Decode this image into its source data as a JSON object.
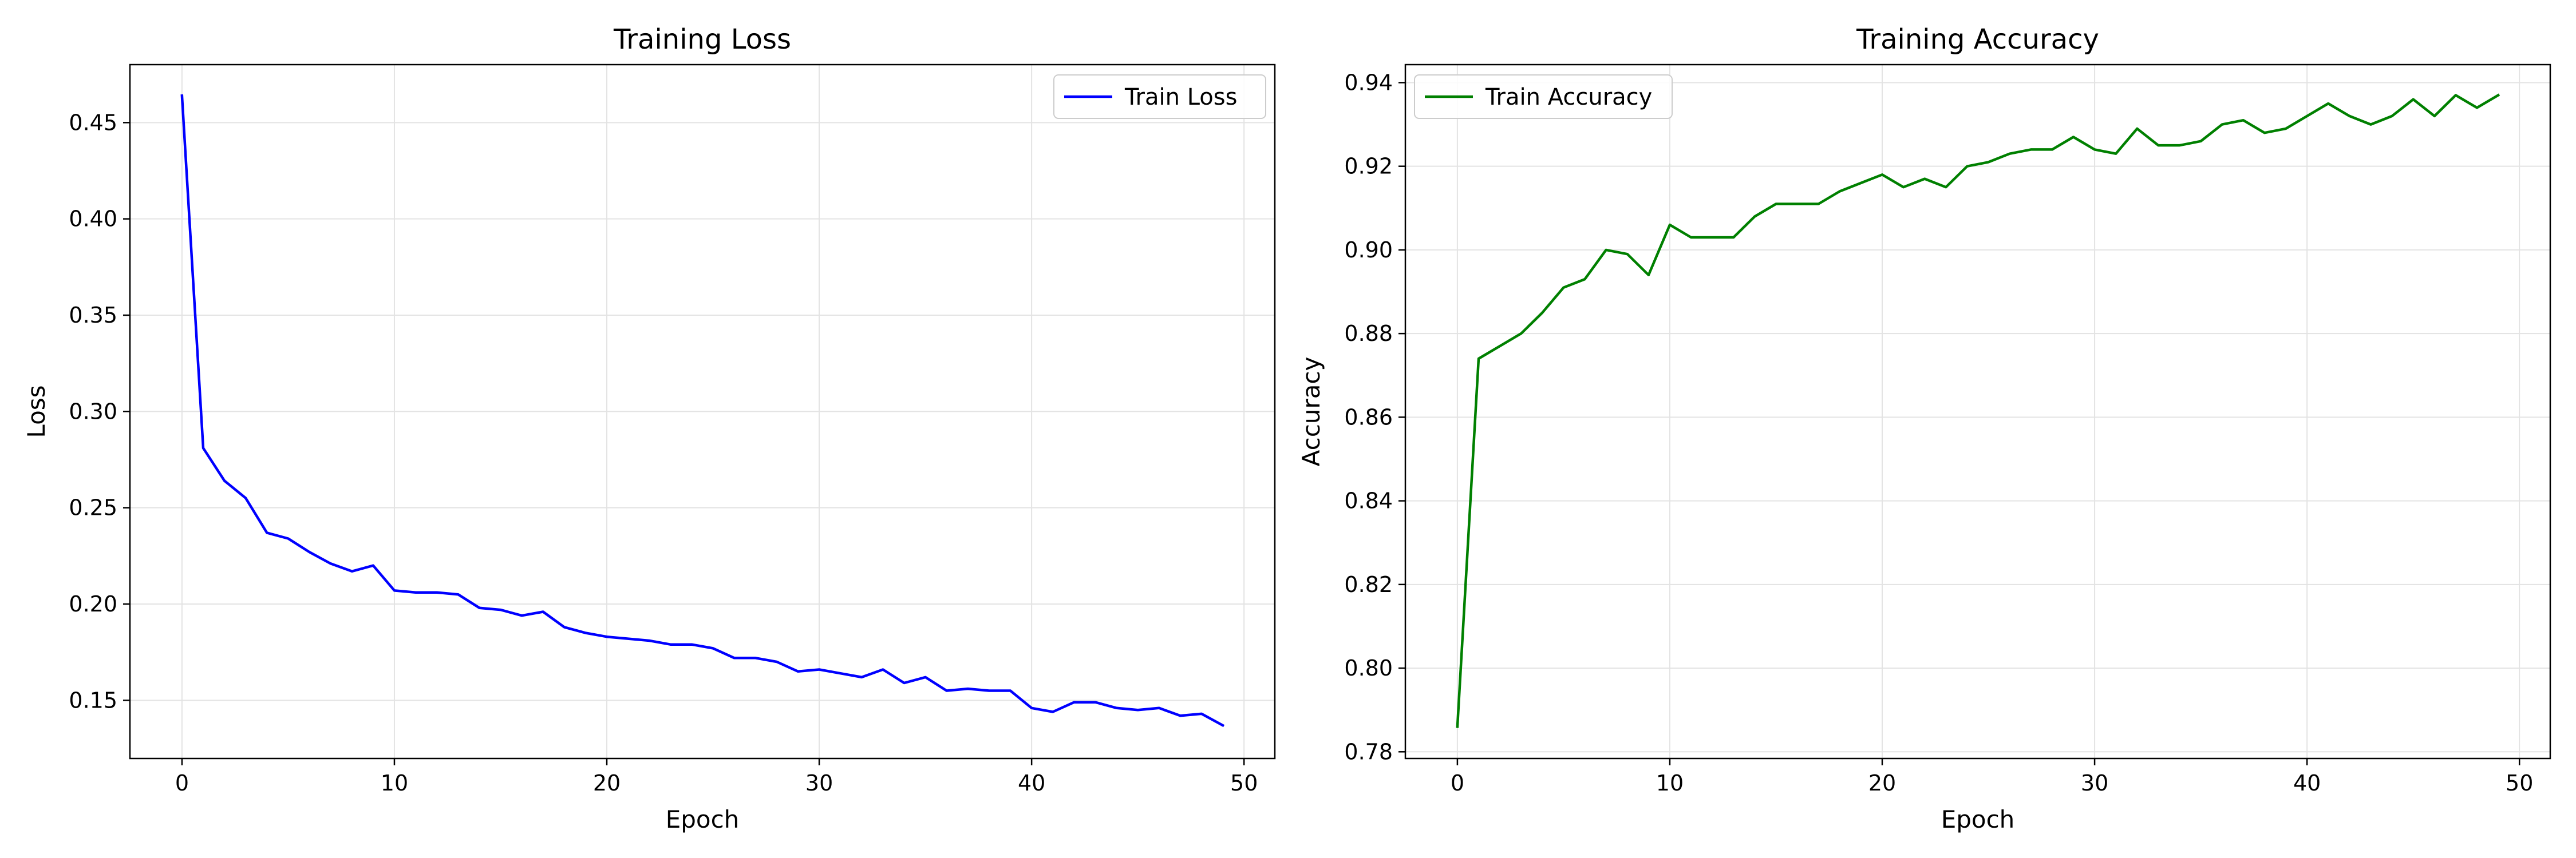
{
  "chart_data": [
    {
      "type": "line",
      "title": "Training Loss",
      "xlabel": "Epoch",
      "ylabel": "Loss",
      "xlim": [
        -2.45,
        51.45
      ],
      "ylim": [
        0.1198,
        0.4801
      ],
      "xticks": [
        0,
        10,
        20,
        30,
        40,
        50
      ],
      "yticks": [
        0.15,
        0.2,
        0.25,
        0.3,
        0.35,
        0.4,
        0.45
      ],
      "ytick_labels": [
        "0.15",
        "0.20",
        "0.25",
        "0.30",
        "0.35",
        "0.40",
        "0.45"
      ],
      "grid": true,
      "legend_position": "upper right",
      "x": [
        0,
        1,
        2,
        3,
        4,
        5,
        6,
        7,
        8,
        9,
        10,
        11,
        12,
        13,
        14,
        15,
        16,
        17,
        18,
        19,
        20,
        21,
        22,
        23,
        24,
        25,
        26,
        27,
        28,
        29,
        30,
        31,
        32,
        33,
        34,
        35,
        36,
        37,
        38,
        39,
        40,
        41,
        42,
        43,
        44,
        45,
        46,
        47,
        48,
        49
      ],
      "series": [
        {
          "name": "Train Loss",
          "color": "#0000ff",
          "values": [
            0.464,
            0.281,
            0.264,
            0.255,
            0.237,
            0.234,
            0.227,
            0.221,
            0.217,
            0.22,
            0.207,
            0.206,
            0.206,
            0.205,
            0.198,
            0.197,
            0.194,
            0.196,
            0.188,
            0.185,
            0.183,
            0.182,
            0.181,
            0.179,
            0.179,
            0.177,
            0.172,
            0.172,
            0.17,
            0.165,
            0.166,
            0.164,
            0.162,
            0.166,
            0.159,
            0.162,
            0.155,
            0.156,
            0.155,
            0.155,
            0.146,
            0.144,
            0.149,
            0.149,
            0.146,
            0.145,
            0.146,
            0.142,
            0.143,
            0.137
          ]
        }
      ]
    },
    {
      "type": "line",
      "title": "Training Accuracy",
      "xlabel": "Epoch",
      "ylabel": "Accuracy",
      "xlim": [
        -2.45,
        51.45
      ],
      "ylim": [
        0.7784,
        0.9443
      ],
      "xticks": [
        0,
        10,
        20,
        30,
        40,
        50
      ],
      "yticks": [
        0.78,
        0.8,
        0.82,
        0.84,
        0.86,
        0.88,
        0.9,
        0.92,
        0.94
      ],
      "ytick_labels": [
        "0.78",
        "0.80",
        "0.82",
        "0.84",
        "0.86",
        "0.88",
        "0.90",
        "0.92",
        "0.94"
      ],
      "grid": true,
      "legend_position": "upper left",
      "x": [
        0,
        1,
        2,
        3,
        4,
        5,
        6,
        7,
        8,
        9,
        10,
        11,
        12,
        13,
        14,
        15,
        16,
        17,
        18,
        19,
        20,
        21,
        22,
        23,
        24,
        25,
        26,
        27,
        28,
        29,
        30,
        31,
        32,
        33,
        34,
        35,
        36,
        37,
        38,
        39,
        40,
        41,
        42,
        43,
        44,
        45,
        46,
        47,
        48,
        49
      ],
      "series": [
        {
          "name": "Train Accuracy",
          "color": "#008000",
          "values": [
            0.786,
            0.874,
            0.877,
            0.88,
            0.885,
            0.891,
            0.893,
            0.9,
            0.899,
            0.894,
            0.906,
            0.903,
            0.903,
            0.903,
            0.908,
            0.911,
            0.911,
            0.911,
            0.914,
            0.916,
            0.918,
            0.915,
            0.917,
            0.915,
            0.92,
            0.921,
            0.923,
            0.924,
            0.924,
            0.927,
            0.924,
            0.923,
            0.929,
            0.925,
            0.925,
            0.926,
            0.93,
            0.931,
            0.928,
            0.929,
            0.932,
            0.935,
            0.932,
            0.93,
            0.932,
            0.936,
            0.932,
            0.937,
            0.934,
            0.937
          ]
        }
      ]
    }
  ]
}
